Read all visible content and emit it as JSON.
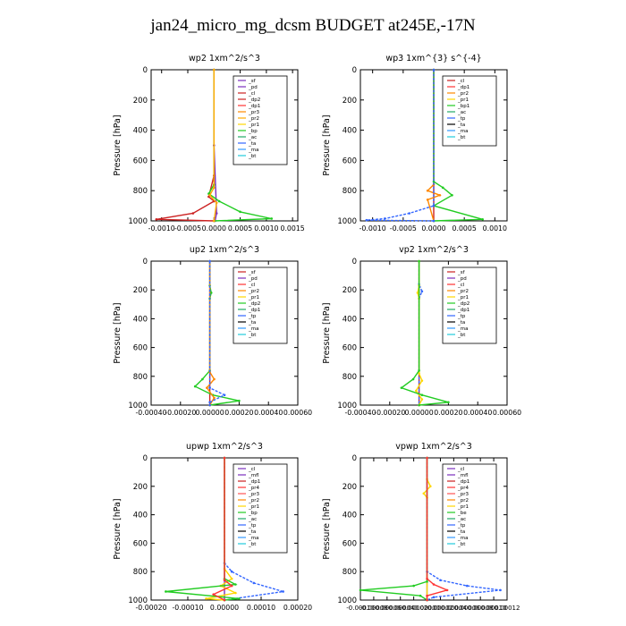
{
  "main_title": "jan24_micro_mg_dcsm  BUDGET at245E,-17N",
  "chart_data": [
    {
      "type": "line",
      "title": "wp2  1xm^2/s^3",
      "ylabel": "Pressure [hPa]",
      "ylim": [
        1000,
        0
      ],
      "yticks": [
        0,
        200,
        400,
        600,
        800,
        1000
      ],
      "xlim": [
        -0.0012,
        0.0016
      ],
      "xticks": [
        -0.001,
        -0.0005,
        0.0,
        0.0005,
        0.001,
        0.0015
      ],
      "xticklabels": [
        "-0.0010",
        "-0.0005",
        "0.0000",
        "0.0005",
        "0.0010",
        "0.0015"
      ],
      "legend": "top-right",
      "legend_labels": [
        "_sf",
        "_pd",
        "_cl",
        "_dp2",
        "_dp1",
        "_pr3",
        "_pr2",
        "_pr1",
        "_bp",
        "_ac",
        "_ta",
        "_ma",
        "_bt"
      ],
      "legend_colors": [
        "#7b2fbe",
        "#7b2fbe",
        "#cc2222",
        "#cc2222",
        "#ff3333",
        "#ff8800",
        "#ffaa00",
        "#ffd700",
        "#22cc22",
        "#22aa66",
        "#3366ff",
        "#3399ff",
        "#22ccdd"
      ],
      "series": [
        {
          "name": "_pd",
          "color": "#7b2fbe",
          "values": [
            [
              0,
              0
            ],
            [
              0,
              500
            ],
            [
              5e-05,
              950
            ],
            [
              2e-05,
              1000
            ]
          ]
        },
        {
          "name": "_cl",
          "color": "#cc2222",
          "values": [
            [
              0,
              0
            ],
            [
              0,
              700
            ],
            [
              -0.0001,
              840
            ],
            [
              0.0,
              870
            ],
            [
              -0.0004,
              950
            ],
            [
              -0.0011,
              990
            ],
            [
              0,
              1000
            ]
          ]
        },
        {
          "name": "_pr1",
          "color": "#22cc22",
          "values": [
            [
              0,
              0
            ],
            [
              0,
              760
            ],
            [
              -0.0001,
              820
            ],
            [
              0.0001,
              870
            ],
            [
              0.0005,
              940
            ],
            [
              0.0011,
              985
            ],
            [
              0,
              1000
            ]
          ]
        },
        {
          "name": "_pr2",
          "color": "#ffaa00",
          "values": [
            [
              0,
              0
            ],
            [
              0,
              780
            ],
            [
              -8e-05,
              830
            ],
            [
              5e-05,
              880
            ],
            [
              0,
              1000
            ]
          ]
        }
      ]
    },
    {
      "type": "line",
      "title": "wp3  1xm^{3} s^{-4}",
      "ylabel": "Pressure [hPa]",
      "ylim": [
        1000,
        0
      ],
      "yticks": [
        0,
        200,
        400,
        600,
        800,
        1000
      ],
      "xlim": [
        -0.0012,
        0.0012
      ],
      "xticks": [
        -0.001,
        -0.0005,
        0.0,
        0.0005,
        0.001
      ],
      "xticklabels": [
        "-0.0010",
        "-0.0005",
        "0.0000",
        "0.0005",
        "0.0010"
      ],
      "legend": "top-right",
      "legend_labels": [
        "_cl",
        "_dp1",
        "_pr2",
        "_pr1",
        "_bp1",
        "_ac",
        "_tp",
        "_ta",
        "_ma",
        "_bt"
      ],
      "legend_colors": [
        "#cc2222",
        "#ff3333",
        "#ff8800",
        "#ffd700",
        "#22cc22",
        "#22aa66",
        "#3366ff",
        "#000000",
        "#3399ff",
        "#22ccdd"
      ],
      "series": [
        {
          "name": "_cl",
          "color": "#cc2222",
          "values": [
            [
              0,
              0
            ],
            [
              0,
              1000
            ]
          ]
        },
        {
          "name": "_pr2",
          "color": "#ff8800",
          "values": [
            [
              0,
              0
            ],
            [
              0,
              760
            ],
            [
              -0.0001,
              800
            ],
            [
              0.0001,
              830
            ],
            [
              -0.0001,
              860
            ],
            [
              0,
              1000
            ]
          ]
        },
        {
          "name": "_bp1",
          "color": "#22cc22",
          "values": [
            [
              0,
              0
            ],
            [
              0,
              740
            ],
            [
              0.00015,
              780
            ],
            [
              0.0003,
              830
            ],
            [
              0,
              900
            ],
            [
              0.0008,
              990
            ],
            [
              0,
              1000
            ]
          ]
        },
        {
          "name": "_tp",
          "color": "#3366ff",
          "values": [
            [
              0,
              0
            ],
            [
              0,
              900
            ],
            [
              -0.0004,
              950
            ],
            [
              -0.0008,
              985
            ],
            [
              -0.0011,
              995
            ],
            [
              0,
              1000
            ]
          ]
        }
      ]
    },
    {
      "type": "line",
      "title": "up2  1xm^2/s^3",
      "ylabel": "Pressure [hPa]",
      "ylim": [
        1000,
        0
      ],
      "yticks": [
        0,
        200,
        400,
        600,
        800,
        1000
      ],
      "xlim": [
        -0.0004,
        0.0006
      ],
      "xticks": [
        -0.0004,
        -0.0002,
        0.0,
        0.0002,
        0.0004,
        0.0006
      ],
      "xticklabels": [
        "-0.00040",
        "-0.00020",
        "0.00000",
        "0.00020",
        "0.00040",
        "0.00060"
      ],
      "legend": "top-right",
      "legend_labels": [
        "_sf",
        "_pd",
        "_cl",
        "_pr2",
        "_pr1",
        "_dp2",
        "_dp1",
        "_tp",
        "_ta",
        "_ma",
        "_bt"
      ],
      "legend_colors": [
        "#cc2222",
        "#7b2fbe",
        "#ff3333",
        "#ff8800",
        "#ffd700",
        "#22cc22",
        "#22aa66",
        "#3366ff",
        "#000000",
        "#3399ff",
        "#22ccdd"
      ],
      "series": [
        {
          "name": "_sf",
          "color": "#cc2222",
          "values": [
            [
              0,
              0
            ],
            [
              0,
              1000
            ]
          ]
        },
        {
          "name": "_dp2",
          "color": "#22cc22",
          "values": [
            [
              0,
              0
            ],
            [
              0.0,
              170
            ],
            [
              1e-05,
              220
            ],
            [
              0,
              260
            ],
            [
              0,
              760
            ],
            [
              -5e-05,
              820
            ],
            [
              -0.0001,
              870
            ],
            [
              2e-05,
              930
            ],
            [
              0.0002,
              970
            ],
            [
              0,
              1000
            ]
          ]
        },
        {
          "name": "_pr2",
          "color": "#ff8800",
          "values": [
            [
              0,
              0
            ],
            [
              0,
              770
            ],
            [
              3e-05,
              820
            ],
            [
              -2e-05,
              880
            ],
            [
              3e-05,
              950
            ],
            [
              0,
              1000
            ]
          ]
        },
        {
          "name": "_tp",
          "color": "#3366ff",
          "values": [
            [
              0,
              0
            ],
            [
              0,
              880
            ],
            [
              0.0001,
              930
            ],
            [
              0.0,
              980
            ],
            [
              0,
              1000
            ]
          ]
        }
      ]
    },
    {
      "type": "line",
      "title": "vp2  1xm^2/s^3",
      "ylabel": "Pressure [hPa]",
      "ylim": [
        1000,
        0
      ],
      "yticks": [
        0,
        200,
        400,
        600,
        800,
        1000
      ],
      "xlim": [
        -0.0004,
        0.0006
      ],
      "xticks": [
        -0.0004,
        -0.0002,
        0.0,
        0.0002,
        0.0004,
        0.0006
      ],
      "xticklabels": [
        "-0.00040",
        "-0.00020",
        "0.00000",
        "0.00020",
        "0.00040",
        "0.00060"
      ],
      "legend": "top-right",
      "legend_labels": [
        "_sf",
        "_pd",
        "_cl",
        "_pr2",
        "_pr1",
        "_dp2",
        "_dp1",
        "_tp",
        "_ta",
        "_ma",
        "_bt"
      ],
      "legend_colors": [
        "#cc2222",
        "#7b2fbe",
        "#ff3333",
        "#ff8800",
        "#ffd700",
        "#22cc22",
        "#22aa66",
        "#3366ff",
        "#000000",
        "#3399ff",
        "#22ccdd"
      ],
      "series": [
        {
          "name": "_sf",
          "color": "#cc2222",
          "values": [
            [
              0,
              0
            ],
            [
              0,
              1000
            ]
          ]
        },
        {
          "name": "_tp",
          "color": "#3366ff",
          "values": [
            [
              0,
              0
            ],
            [
              0,
              160
            ],
            [
              2e-05,
              210
            ],
            [
              0,
              260
            ],
            [
              0,
              1000
            ]
          ]
        },
        {
          "name": "_pr2",
          "color": "#ffd700",
          "values": [
            [
              0,
              0
            ],
            [
              0,
              170
            ],
            [
              -1e-05,
              220
            ],
            [
              0,
              260
            ],
            [
              0,
              780
            ],
            [
              2e-05,
              830
            ],
            [
              -2e-05,
              900
            ],
            [
              2e-05,
              960
            ],
            [
              0,
              1000
            ]
          ]
        },
        {
          "name": "_dp2",
          "color": "#22cc22",
          "values": [
            [
              0,
              0
            ],
            [
              0,
              760
            ],
            [
              -4e-05,
              820
            ],
            [
              -0.00012,
              880
            ],
            [
              2e-05,
              930
            ],
            [
              0.0002,
              980
            ],
            [
              0,
              1000
            ]
          ]
        }
      ]
    },
    {
      "type": "line",
      "title": "upwp  1xm^2/s^3",
      "ylabel": "Pressure [hPa]",
      "ylim": [
        1000,
        0
      ],
      "yticks": [
        0,
        200,
        400,
        600,
        800,
        1000
      ],
      "xlim": [
        -0.0002,
        0.0002
      ],
      "xticks": [
        -0.0002,
        -0.0001,
        0.0,
        0.0001,
        0.0002
      ],
      "xticklabels": [
        "-0.00020",
        "-0.00010",
        "0.00000",
        "0.00010",
        "0.00020"
      ],
      "legend": "top-right",
      "legend_labels": [
        "_cl",
        "_mfl",
        "_dp1",
        "_pr4",
        "_pr3",
        "_pr2",
        "_pr1",
        "_bp",
        "_ac",
        "_tp",
        "_ta",
        "_ma",
        "_bt"
      ],
      "legend_colors": [
        "#7b2fbe",
        "#7b2fbe",
        "#cc2222",
        "#ff3333",
        "#ff5555",
        "#ff8800",
        "#ffd700",
        "#22cc22",
        "#22aa66",
        "#3366ff",
        "#000000",
        "#3399ff",
        "#22ccdd"
      ],
      "series": [
        {
          "name": "_cl",
          "color": "#7b2fbe",
          "values": [
            [
              0,
              0
            ],
            [
              0,
              1000
            ]
          ]
        },
        {
          "name": "_tp",
          "color": "#3366ff",
          "values": [
            [
              0,
              0
            ],
            [
              0,
              740
            ],
            [
              2e-05,
              800
            ],
            [
              8e-05,
              880
            ],
            [
              0.00016,
              940
            ],
            [
              0,
              1000
            ]
          ]
        },
        {
          "name": "_pr2",
          "color": "#ffd700",
          "values": [
            [
              0,
              0
            ],
            [
              0,
              780
            ],
            [
              2e-05,
              850
            ],
            [
              -1e-05,
              900
            ],
            [
              3e-05,
              950
            ],
            [
              -5e-05,
              990
            ],
            [
              0,
              1000
            ]
          ]
        },
        {
          "name": "_bp",
          "color": "#22cc22",
          "values": [
            [
              0,
              0
            ],
            [
              0,
              850
            ],
            [
              3e-05,
              890
            ],
            [
              -0.00016,
              940
            ],
            [
              4e-05,
              990
            ],
            [
              0,
              1000
            ]
          ]
        },
        {
          "name": "_pr3",
          "color": "#ff3333",
          "values": [
            [
              0,
              0
            ],
            [
              0,
              860
            ],
            [
              2e-05,
              900
            ],
            [
              -3e-05,
              960
            ],
            [
              0,
              1000
            ]
          ]
        }
      ]
    },
    {
      "type": "line",
      "title": "vpwp  1xm^2/s^3",
      "ylabel": "Pressure [hPa]",
      "ylim": [
        1000,
        0
      ],
      "yticks": [
        0,
        200,
        400,
        600,
        800,
        1000
      ],
      "xlim": [
        -0.0001,
        0.00012
      ],
      "xticks": [
        -0.0001,
        -8e-05,
        -6e-05,
        -4e-05,
        -2e-05,
        0.0,
        2e-05,
        4e-05,
        6e-05,
        8e-05,
        0.0001,
        0.00012
      ],
      "xticklabels": [
        "-0.00010",
        "-0.00008",
        "-0.00006",
        "-0.00004",
        "-0.00002",
        "0.00000",
        "0.00002",
        "0.00004",
        "0.00006",
        "0.00008",
        "0.00010",
        "0.00012"
      ],
      "legend": "top-right",
      "legend_labels": [
        "_cl",
        "_mfl",
        "_dp1",
        "_pr4",
        "_pr3",
        "_pr2",
        "_pr1",
        "_be",
        "_ac",
        "_tp",
        "_ta",
        "_ma",
        "_bt"
      ],
      "legend_colors": [
        "#7b2fbe",
        "#7b2fbe",
        "#cc2222",
        "#ff3333",
        "#ff5555",
        "#ff8800",
        "#ffd700",
        "#22cc22",
        "#22aa66",
        "#3366ff",
        "#000000",
        "#3399ff",
        "#22ccdd"
      ],
      "series": [
        {
          "name": "_cl",
          "color": "#7b2fbe",
          "values": [
            [
              0,
              0
            ],
            [
              0,
              1000
            ]
          ]
        },
        {
          "name": "_pr2",
          "color": "#ffd700",
          "values": [
            [
              0,
              0
            ],
            [
              0,
              150
            ],
            [
              5e-06,
              200
            ],
            [
              -5e-06,
              250
            ],
            [
              0,
              280
            ],
            [
              0,
              1000
            ]
          ]
        },
        {
          "name": "_tp",
          "color": "#3366ff",
          "values": [
            [
              0,
              0
            ],
            [
              0,
              800
            ],
            [
              2e-05,
              860
            ],
            [
              6e-05,
              900
            ],
            [
              0.00011,
              930
            ],
            [
              1e-05,
              980
            ],
            [
              0,
              1000
            ]
          ]
        },
        {
          "name": "_bp",
          "color": "#22cc22",
          "values": [
            [
              0,
              0
            ],
            [
              0,
              870
            ],
            [
              -2e-05,
              900
            ],
            [
              -0.0001,
              930
            ],
            [
              -1e-05,
              970
            ],
            [
              0,
              1000
            ]
          ]
        },
        {
          "name": "_pr3",
          "color": "#ff3333",
          "values": [
            [
              0,
              0
            ],
            [
              0,
              850
            ],
            [
              1e-05,
              890
            ],
            [
              3e-05,
              930
            ],
            [
              0.0,
              970
            ],
            [
              0,
              1000
            ]
          ]
        }
      ]
    }
  ]
}
